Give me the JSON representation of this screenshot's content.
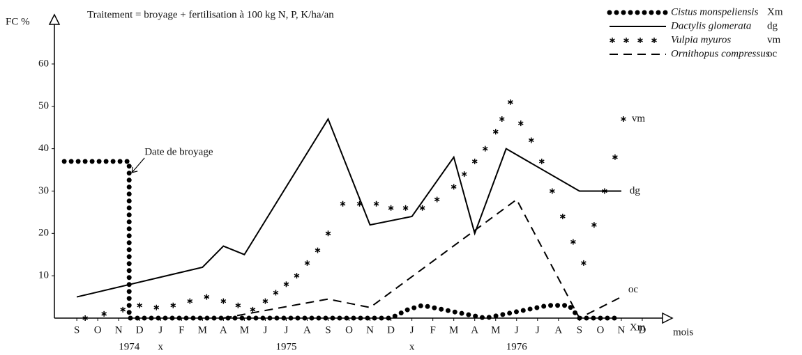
{
  "chart_data": {
    "type": "line",
    "title": "Traitement = broyage + fertilisation à 100 kg N, P, K/ha/an",
    "y_label": "FC %",
    "x_label": "mois",
    "xlim": [
      -1.07,
      28.3
    ],
    "ylim": [
      0,
      71
    ],
    "yticks": [
      10,
      20,
      30,
      40,
      50,
      60
    ],
    "xticks": [
      {
        "value": 0,
        "label": "S"
      },
      {
        "value": 1,
        "label": "O"
      },
      {
        "value": 2,
        "label": "N"
      },
      {
        "value": 3,
        "label": "D"
      },
      {
        "value": 4,
        "label": "J"
      },
      {
        "value": 5,
        "label": "F"
      },
      {
        "value": 6,
        "label": "M"
      },
      {
        "value": 7,
        "label": "A"
      },
      {
        "value": 8,
        "label": "M"
      },
      {
        "value": 9,
        "label": "J"
      },
      {
        "value": 10,
        "label": "J"
      },
      {
        "value": 11,
        "label": "A"
      },
      {
        "value": 12,
        "label": "S"
      },
      {
        "value": 13,
        "label": "O"
      },
      {
        "value": 14,
        "label": "N"
      },
      {
        "value": 15,
        "label": "D"
      },
      {
        "value": 16,
        "label": "J"
      },
      {
        "value": 17,
        "label": "F"
      },
      {
        "value": 18,
        "label": "M"
      },
      {
        "value": 19,
        "label": "A"
      },
      {
        "value": 20,
        "label": "M"
      },
      {
        "value": 21,
        "label": "J"
      },
      {
        "value": 22,
        "label": "J"
      },
      {
        "value": 23,
        "label": "A"
      },
      {
        "value": 24,
        "label": "S"
      },
      {
        "value": 25,
        "label": "O"
      },
      {
        "value": 26,
        "label": "N"
      },
      {
        "value": 27,
        "label": "D"
      }
    ],
    "year_labels": [
      {
        "x": 2.5,
        "label": "1974"
      },
      {
        "x": 10,
        "label": "1975"
      },
      {
        "x": 21,
        "label": "1976"
      }
    ],
    "x_markers": [
      {
        "x": 4,
        "label": "x"
      },
      {
        "x": 16,
        "label": "x"
      }
    ],
    "annotation": {
      "text": "Date de broyage",
      "x": 2.5,
      "y": 37
    },
    "series": [
      {
        "name": "Cistus monspeliensis",
        "abbr": "Xm",
        "style": "dots",
        "color": "#000000",
        "x": [
          -0.6,
          2.5,
          2.5,
          3.5,
          7,
          15,
          15.8,
          16.5,
          17.5,
          18.5,
          19.5,
          20.5,
          21.5,
          22.5,
          23.5,
          24,
          26
        ],
        "values": [
          37,
          37,
          0,
          0,
          0,
          0,
          2,
          3,
          2,
          1,
          0,
          1,
          2,
          3,
          3,
          0,
          0
        ]
      },
      {
        "name": "Dactylis glomerata",
        "abbr": "dg",
        "style": "solid",
        "color": "#000000",
        "x": [
          0,
          6,
          7,
          8,
          12,
          14,
          16,
          18,
          19,
          20.5,
          24,
          26
        ],
        "values": [
          5,
          12,
          17,
          15,
          47,
          22,
          24,
          38,
          20,
          40,
          30,
          30
        ]
      },
      {
        "name": "Vulpia myuros",
        "abbr": "vm",
        "style": "stars",
        "color": "#000000",
        "x": [
          0.4,
          1.3,
          2.2,
          3,
          3.8,
          4.6,
          5.4,
          6.2,
          7,
          7.7,
          8.4,
          9,
          9.5,
          10,
          10.5,
          11,
          11.5,
          12,
          12.7,
          13.5,
          14.3,
          15,
          15.7,
          16.5,
          17.2,
          18,
          18.5,
          19,
          19.5,
          20,
          20.3,
          20.7,
          21.2,
          21.7,
          22.2,
          22.7,
          23.2,
          23.7,
          24.2,
          24.7,
          25.2,
          25.7,
          26.1
        ],
        "values": [
          0,
          1,
          2,
          3,
          2.5,
          3,
          4,
          5,
          4,
          3,
          2,
          4,
          6,
          8,
          10,
          13,
          16,
          20,
          27,
          27,
          27,
          26,
          26,
          26,
          28,
          31,
          34,
          37,
          40,
          44,
          47,
          51,
          46,
          42,
          37,
          30,
          24,
          18,
          13,
          22,
          30,
          38,
          47
        ]
      },
      {
        "name": "Ornithopus compressus",
        "abbr": "oc",
        "style": "dashed",
        "color": "#000000",
        "x": [
          7,
          12,
          14,
          21,
          24,
          26
        ],
        "values": [
          0,
          4.5,
          2.5,
          28,
          0,
          5
        ]
      }
    ]
  }
}
